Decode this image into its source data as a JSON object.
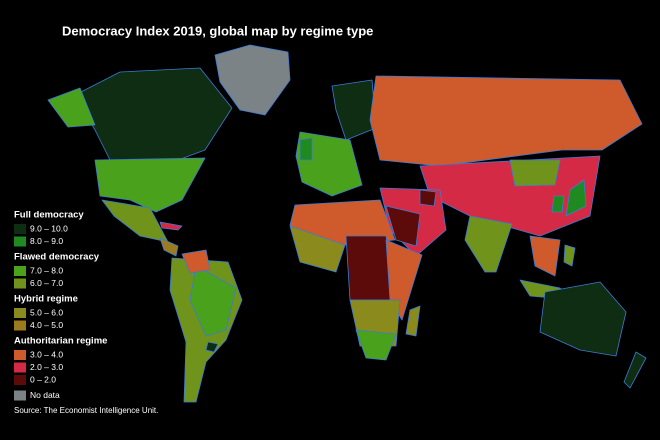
{
  "title": "Democracy Index 2019, global map by regime type",
  "legend": {
    "groups": [
      {
        "name": "Full democracy",
        "items": [
          {
            "label": "9.0 – 10.0",
            "color": "#0f2d12"
          },
          {
            "label": "8.0 – 9.0",
            "color": "#1f8a1f"
          }
        ]
      },
      {
        "name": "Flawed democracy",
        "items": [
          {
            "label": "7.0 – 8.0",
            "color": "#4aa21c"
          },
          {
            "label": "6.0 – 7.0",
            "color": "#6f931b"
          }
        ]
      },
      {
        "name": "Hybrid regime",
        "items": [
          {
            "label": "5.0 – 6.0",
            "color": "#8b8a1c"
          },
          {
            "label": "4.0 – 5.0",
            "color": "#9b7a20"
          }
        ]
      },
      {
        "name": "Authoritarian regime",
        "items": [
          {
            "label": "3.0 – 4.0",
            "color": "#cf5a2c"
          },
          {
            "label": "2.0 – 3.0",
            "color": "#d42a46"
          },
          {
            "label": "0 – 2.0",
            "color": "#5c0a0a"
          }
        ]
      }
    ],
    "no_data": {
      "label": "No data",
      "color": "#7b8386"
    }
  },
  "source": "Source: The Economist Intelligence Unit."
}
